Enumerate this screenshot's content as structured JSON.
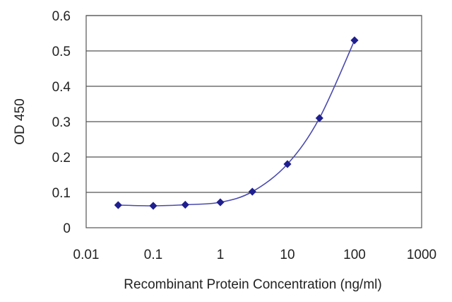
{
  "chart_data": {
    "type": "line",
    "title": "",
    "xlabel": "Recombinant Protein Concentration (ng/ml)",
    "ylabel": "OD 450",
    "x_scale": "log",
    "xlim": [
      0.01,
      1000
    ],
    "ylim": [
      0,
      0.6
    ],
    "x_ticks": [
      "0.01",
      "0.1",
      "1",
      "10",
      "100",
      "1000"
    ],
    "y_ticks": [
      "0",
      "0.1",
      "0.2",
      "0.3",
      "0.4",
      "0.5",
      "0.6"
    ],
    "grid": "horizontal",
    "legend": "none",
    "series": [
      {
        "x": [
          0.03,
          0.1,
          0.3,
          1,
          3,
          10,
          30,
          100
        ],
        "y": [
          0.064,
          0.062,
          0.065,
          0.072,
          0.102,
          0.18,
          0.31,
          0.53
        ],
        "color": "#1f1f8f"
      }
    ]
  }
}
